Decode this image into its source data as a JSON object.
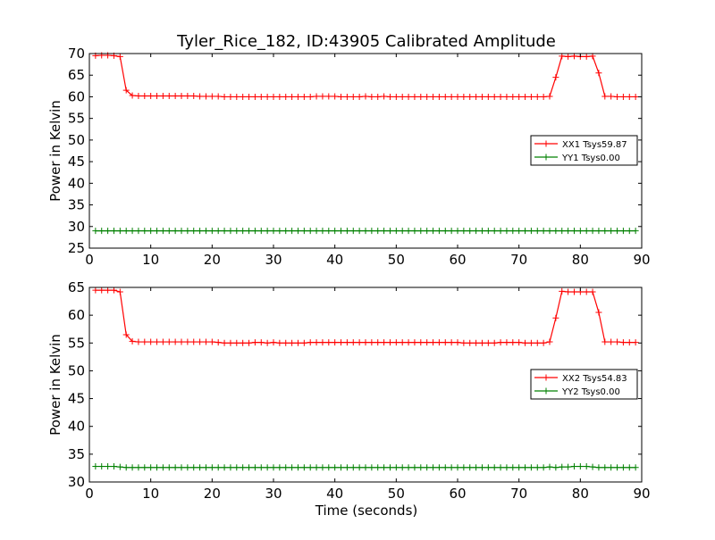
{
  "figure": {
    "title": "Tyler_Rice_182, ID:43905 Calibrated Amplitude",
    "xlabel": "Time (seconds)"
  },
  "chart_data": [
    {
      "type": "line",
      "ylabel": "Power in Kelvin",
      "xlabel": "",
      "xlim": [
        0,
        90
      ],
      "ylim": [
        25,
        70
      ],
      "xticks": [
        0,
        10,
        20,
        30,
        40,
        50,
        60,
        70,
        80,
        90
      ],
      "yticks": [
        25,
        30,
        35,
        40,
        45,
        50,
        55,
        60,
        65,
        70
      ],
      "grid": false,
      "legend_position": "right",
      "marker": "+",
      "series": [
        {
          "name": "XX1 Tsys59.87",
          "color": "#ff0000",
          "x": [
            1,
            2,
            3,
            4,
            5,
            6,
            7,
            8,
            9,
            10,
            11,
            12,
            13,
            14,
            15,
            16,
            17,
            18,
            19,
            20,
            21,
            22,
            23,
            24,
            25,
            26,
            27,
            28,
            29,
            30,
            31,
            32,
            33,
            34,
            35,
            36,
            37,
            38,
            39,
            40,
            41,
            42,
            43,
            44,
            45,
            46,
            47,
            48,
            49,
            50,
            51,
            52,
            53,
            54,
            55,
            56,
            57,
            58,
            59,
            60,
            61,
            62,
            63,
            64,
            65,
            66,
            67,
            68,
            69,
            70,
            71,
            72,
            73,
            74,
            75,
            76,
            77,
            78,
            79,
            80,
            81,
            82,
            83,
            84,
            85,
            86,
            87,
            88,
            89
          ],
          "y": [
            69.5,
            69.6,
            69.6,
            69.5,
            69.3,
            61.5,
            60.3,
            60.2,
            60.2,
            60.2,
            60.2,
            60.2,
            60.2,
            60.2,
            60.2,
            60.2,
            60.2,
            60.1,
            60.1,
            60.1,
            60.1,
            60.0,
            60.0,
            60.0,
            60.0,
            60.0,
            60.0,
            60.0,
            60.0,
            60.0,
            60.0,
            60.0,
            60.0,
            60.0,
            60.0,
            60.0,
            60.1,
            60.1,
            60.1,
            60.1,
            60.0,
            60.0,
            60.0,
            60.0,
            60.1,
            60.0,
            60.0,
            60.1,
            60.0,
            60.0,
            60.0,
            60.0,
            60.0,
            60.0,
            60.0,
            60.0,
            60.0,
            60.0,
            60.0,
            60.0,
            60.0,
            60.0,
            60.0,
            60.0,
            60.0,
            60.0,
            60.0,
            60.0,
            60.0,
            60.0,
            60.0,
            60.0,
            60.0,
            60.0,
            60.1,
            64.5,
            69.4,
            69.3,
            69.4,
            69.3,
            69.3,
            69.4,
            65.5,
            60.1,
            60.1,
            60.0,
            60.0,
            60.0,
            60.0
          ]
        },
        {
          "name": "YY1 Tsys0.00",
          "color": "#008000",
          "x": [
            1,
            2,
            3,
            4,
            5,
            6,
            7,
            8,
            9,
            10,
            11,
            12,
            13,
            14,
            15,
            16,
            17,
            18,
            19,
            20,
            21,
            22,
            23,
            24,
            25,
            26,
            27,
            28,
            29,
            30,
            31,
            32,
            33,
            34,
            35,
            36,
            37,
            38,
            39,
            40,
            41,
            42,
            43,
            44,
            45,
            46,
            47,
            48,
            49,
            50,
            51,
            52,
            53,
            54,
            55,
            56,
            57,
            58,
            59,
            60,
            61,
            62,
            63,
            64,
            65,
            66,
            67,
            68,
            69,
            70,
            71,
            72,
            73,
            74,
            75,
            76,
            77,
            78,
            79,
            80,
            81,
            82,
            83,
            84,
            85,
            86,
            87,
            88,
            89
          ],
          "y": [
            29,
            29,
            29,
            29,
            29,
            29,
            29,
            29,
            29,
            29,
            29,
            29,
            29,
            29,
            29,
            29,
            29,
            29,
            29,
            29,
            29,
            29,
            29,
            29,
            29,
            29,
            29,
            29,
            29,
            29,
            29,
            29,
            29,
            29,
            29,
            29,
            29,
            29,
            29,
            29,
            29,
            29,
            29,
            29,
            29,
            29,
            29,
            29,
            29,
            29,
            29,
            29,
            29,
            29,
            29,
            29,
            29,
            29,
            29,
            29,
            29,
            29,
            29,
            29,
            29,
            29,
            29,
            29,
            29,
            29,
            29,
            29,
            29,
            29,
            29,
            29,
            29,
            29,
            29,
            29,
            29,
            29,
            29,
            29,
            29,
            29,
            29,
            29,
            29
          ]
        }
      ]
    },
    {
      "type": "line",
      "ylabel": "Power in Kelvin",
      "xlabel": "Time (seconds)",
      "xlim": [
        0,
        90
      ],
      "ylim": [
        30,
        65
      ],
      "xticks": [
        0,
        10,
        20,
        30,
        40,
        50,
        60,
        70,
        80,
        90
      ],
      "yticks": [
        30,
        35,
        40,
        45,
        50,
        55,
        60,
        65
      ],
      "grid": false,
      "legend_position": "right",
      "marker": "+",
      "series": [
        {
          "name": "XX2 Tsys54.83",
          "color": "#ff0000",
          "x": [
            1,
            2,
            3,
            4,
            5,
            6,
            7,
            8,
            9,
            10,
            11,
            12,
            13,
            14,
            15,
            16,
            17,
            18,
            19,
            20,
            21,
            22,
            23,
            24,
            25,
            26,
            27,
            28,
            29,
            30,
            31,
            32,
            33,
            34,
            35,
            36,
            37,
            38,
            39,
            40,
            41,
            42,
            43,
            44,
            45,
            46,
            47,
            48,
            49,
            50,
            51,
            52,
            53,
            54,
            55,
            56,
            57,
            58,
            59,
            60,
            61,
            62,
            63,
            64,
            65,
            66,
            67,
            68,
            69,
            70,
            71,
            72,
            73,
            74,
            75,
            76,
            77,
            78,
            79,
            80,
            81,
            82,
            83,
            84,
            85,
            86,
            87,
            88,
            89
          ],
          "y": [
            64.5,
            64.5,
            64.5,
            64.5,
            64.2,
            56.5,
            55.3,
            55.2,
            55.2,
            55.2,
            55.2,
            55.2,
            55.2,
            55.2,
            55.2,
            55.2,
            55.2,
            55.2,
            55.2,
            55.2,
            55.1,
            55.0,
            55.0,
            55.0,
            55.0,
            55.0,
            55.1,
            55.1,
            55.0,
            55.1,
            55.0,
            55.0,
            55.0,
            55.0,
            55.0,
            55.1,
            55.1,
            55.1,
            55.1,
            55.1,
            55.1,
            55.1,
            55.1,
            55.1,
            55.1,
            55.1,
            55.1,
            55.1,
            55.1,
            55.1,
            55.1,
            55.1,
            55.1,
            55.1,
            55.1,
            55.1,
            55.1,
            55.1,
            55.1,
            55.1,
            55.0,
            55.0,
            55.0,
            55.0,
            55.0,
            55.0,
            55.1,
            55.1,
            55.1,
            55.1,
            55.0,
            55.0,
            55.0,
            55.0,
            55.2,
            59.5,
            64.3,
            64.2,
            64.2,
            64.2,
            64.2,
            64.2,
            60.5,
            55.2,
            55.2,
            55.2,
            55.1,
            55.1,
            55.1
          ]
        },
        {
          "name": "YY2 Tsys0.00",
          "color": "#008000",
          "x": [
            1,
            2,
            3,
            4,
            5,
            6,
            7,
            8,
            9,
            10,
            11,
            12,
            13,
            14,
            15,
            16,
            17,
            18,
            19,
            20,
            21,
            22,
            23,
            24,
            25,
            26,
            27,
            28,
            29,
            30,
            31,
            32,
            33,
            34,
            35,
            36,
            37,
            38,
            39,
            40,
            41,
            42,
            43,
            44,
            45,
            46,
            47,
            48,
            49,
            50,
            51,
            52,
            53,
            54,
            55,
            56,
            57,
            58,
            59,
            60,
            61,
            62,
            63,
            64,
            65,
            66,
            67,
            68,
            69,
            70,
            71,
            72,
            73,
            74,
            75,
            76,
            77,
            78,
            79,
            80,
            81,
            82,
            83,
            84,
            85,
            86,
            87,
            88,
            89
          ],
          "y": [
            32.8,
            32.8,
            32.8,
            32.8,
            32.7,
            32.6,
            32.6,
            32.6,
            32.6,
            32.6,
            32.6,
            32.6,
            32.6,
            32.6,
            32.6,
            32.6,
            32.6,
            32.6,
            32.6,
            32.6,
            32.6,
            32.6,
            32.6,
            32.6,
            32.6,
            32.6,
            32.6,
            32.6,
            32.6,
            32.6,
            32.6,
            32.6,
            32.6,
            32.6,
            32.6,
            32.6,
            32.6,
            32.6,
            32.6,
            32.6,
            32.6,
            32.6,
            32.6,
            32.6,
            32.6,
            32.6,
            32.6,
            32.6,
            32.6,
            32.6,
            32.6,
            32.6,
            32.6,
            32.6,
            32.6,
            32.6,
            32.6,
            32.6,
            32.6,
            32.6,
            32.6,
            32.6,
            32.6,
            32.6,
            32.6,
            32.6,
            32.6,
            32.6,
            32.6,
            32.6,
            32.6,
            32.6,
            32.6,
            32.6,
            32.7,
            32.6,
            32.7,
            32.7,
            32.8,
            32.8,
            32.8,
            32.7,
            32.6,
            32.6,
            32.6,
            32.6,
            32.6,
            32.6,
            32.6
          ]
        }
      ]
    }
  ]
}
